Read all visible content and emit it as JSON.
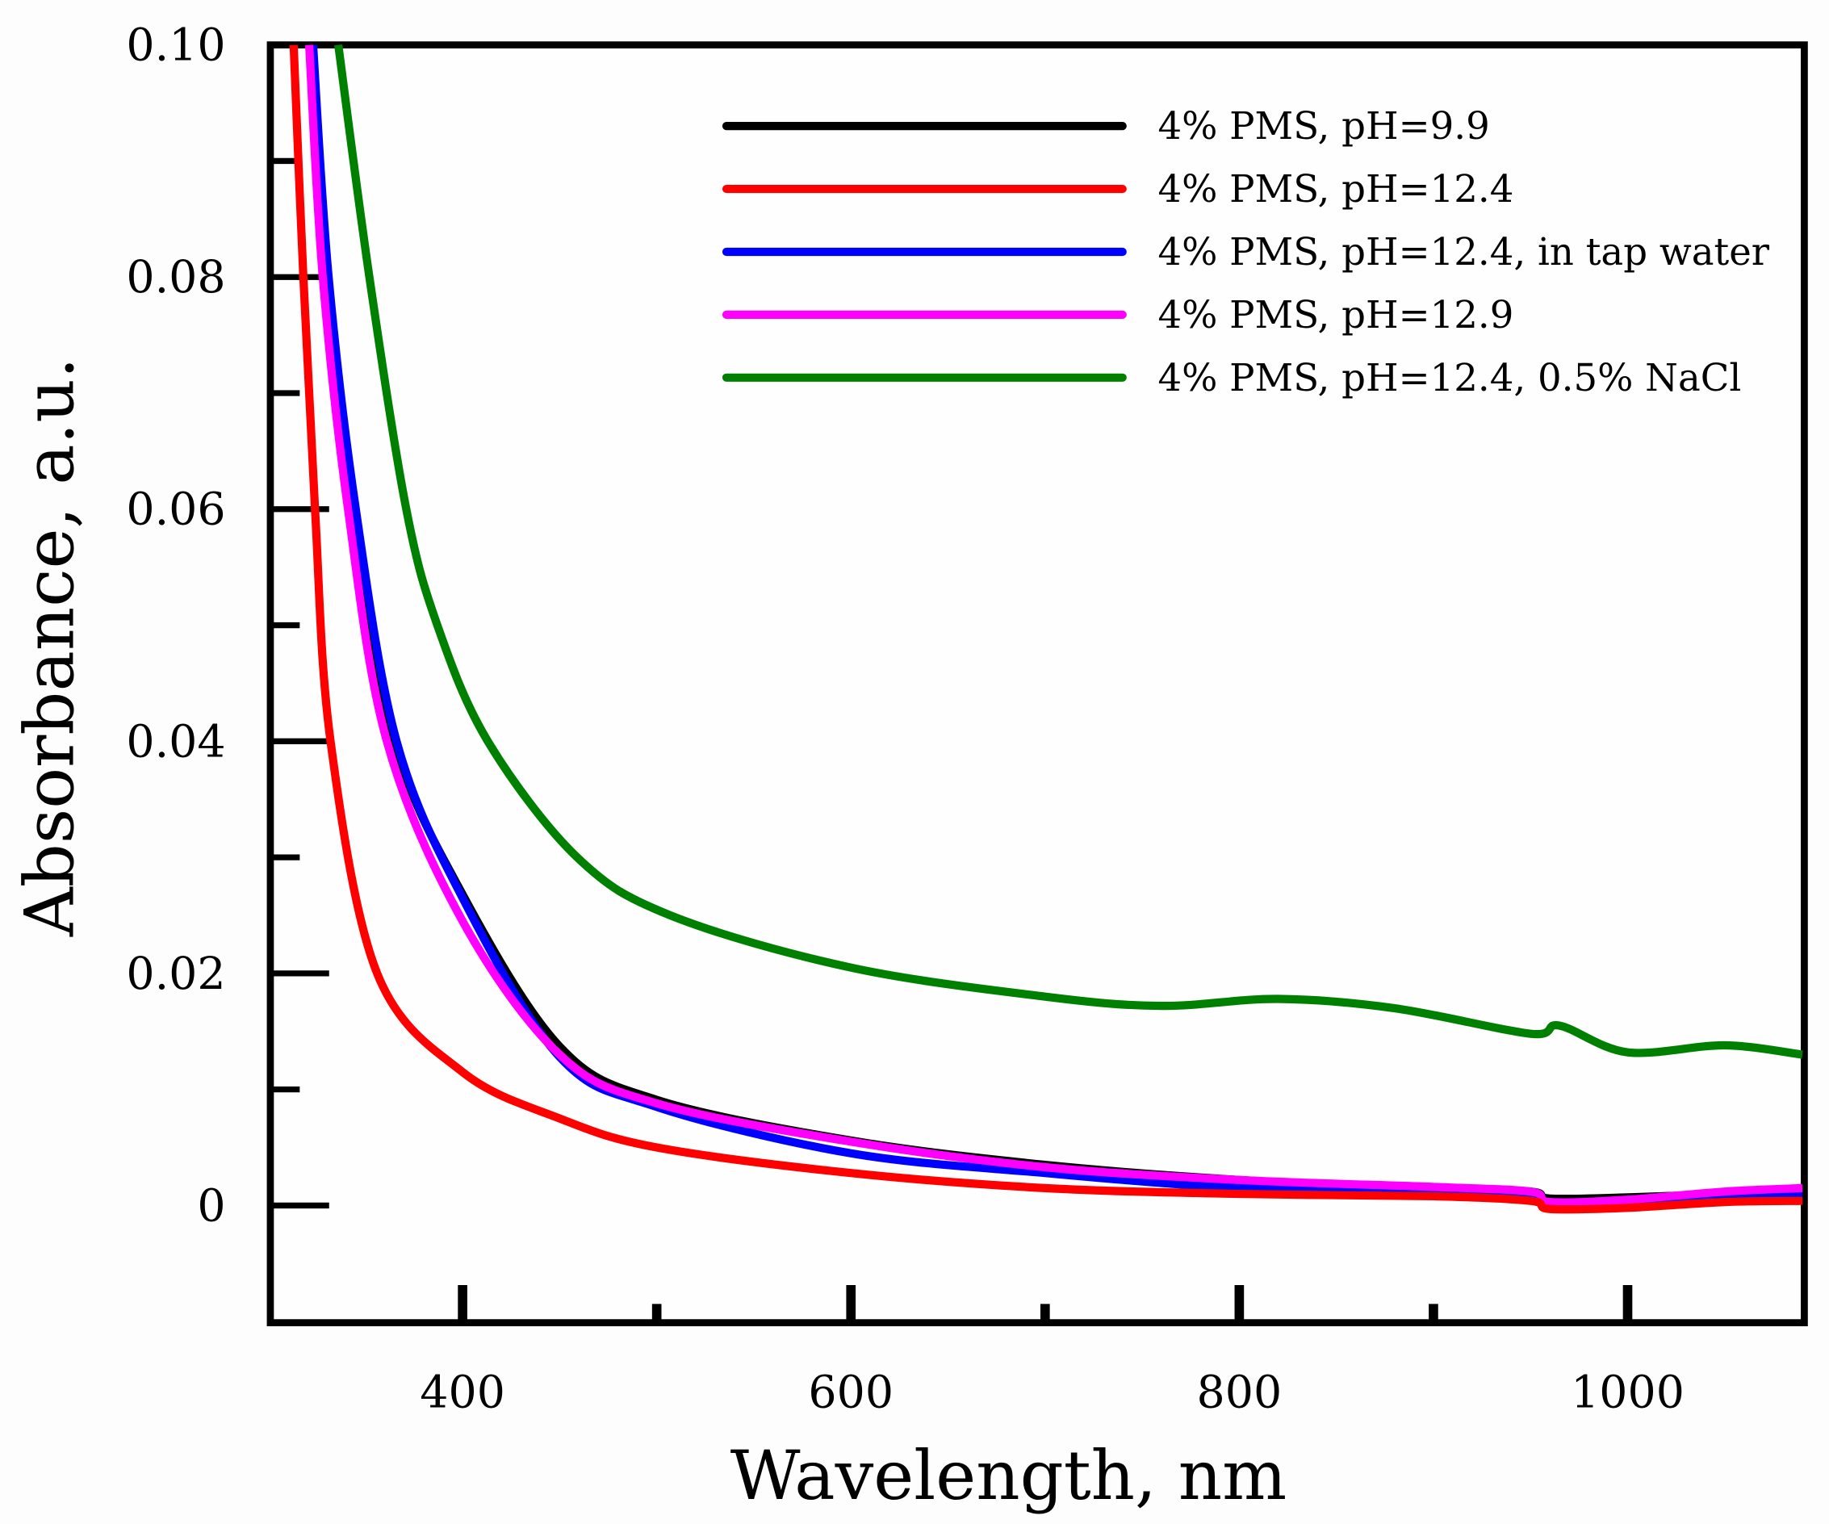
{
  "chart_data": {
    "type": "line",
    "title": "",
    "xlabel": "Wavelength, nm",
    "ylabel": "Absorbance, a.u.",
    "xlim": [
      301,
      1091
    ],
    "ylim": [
      -0.0101,
      0.1
    ],
    "xticks": [
      400,
      600,
      800,
      1000
    ],
    "xtick_labels": [
      "400",
      "600",
      "800",
      "1000"
    ],
    "xminor": [
      500,
      700,
      900
    ],
    "yticks": [
      0.1,
      0.08,
      0.06,
      0.04,
      0.02,
      0
    ],
    "ytick_labels": [
      "0.10",
      "0.08",
      "0.06",
      "0.04",
      "0.02",
      "0"
    ],
    "yminor": [
      0.09,
      0.07,
      0.05,
      0.03,
      0.01
    ],
    "grid": false,
    "legend_position": "top-right",
    "series": [
      {
        "name": "4% PMS, pH=9.9",
        "color": "#000000",
        "x": [
          322,
          330,
          344,
          365,
          400,
          450,
          500,
          600,
          700,
          800,
          900,
          950,
          960,
          1000,
          1050,
          1090
        ],
        "y": [
          0.1,
          0.08,
          0.06,
          0.04,
          0.0268,
          0.0137,
          0.0091,
          0.0056,
          0.0035,
          0.0022,
          0.0015,
          0.0012,
          0.0006,
          0.0007,
          0.001,
          0.0012
        ]
      },
      {
        "name": "4% PMS, pH=12.4",
        "color": "#ff0000",
        "x": [
          313,
          318,
          324,
          332,
          356,
          400,
          450,
          500,
          600,
          700,
          800,
          900,
          950,
          960,
          1000,
          1050,
          1090
        ],
        "y": [
          0.1,
          0.08,
          0.06,
          0.04,
          0.02,
          0.0115,
          0.0075,
          0.005,
          0.0028,
          0.0015,
          0.001,
          0.0008,
          0.0004,
          -0.0003,
          -0.0002,
          0.0003,
          0.0004
        ]
      },
      {
        "name": "4% PMS, pH=12.4, in tap water",
        "color": "#0000ff",
        "x": [
          323,
          331,
          345,
          366,
          400,
          450,
          500,
          600,
          700,
          800,
          900,
          950,
          960,
          1000,
          1050,
          1090
        ],
        "y": [
          0.1,
          0.08,
          0.06,
          0.04,
          0.0265,
          0.0128,
          0.0085,
          0.0045,
          0.0028,
          0.0015,
          0.0011,
          0.0008,
          -0.0002,
          0.0002,
          0.0008,
          0.001
        ]
      },
      {
        "name": "4% PMS, pH=12.9",
        "color": "#ff00ff",
        "x": [
          321,
          328,
          341,
          361,
          400,
          450,
          500,
          600,
          700,
          800,
          900,
          950,
          960,
          1000,
          1050,
          1090
        ],
        "y": [
          0.1,
          0.08,
          0.06,
          0.04,
          0.0245,
          0.013,
          0.0088,
          0.0055,
          0.0033,
          0.0022,
          0.0016,
          0.0012,
          0.0003,
          0.0005,
          0.0012,
          0.0015
        ]
      },
      {
        "name": "4% PMS, pH=12.4, 0.5% NaCl",
        "color": "#008000",
        "x": [
          336,
          352,
          371,
          387,
          413,
          459,
          507,
          600,
          700,
          760,
          820,
          880,
          950,
          965,
          1000,
          1050,
          1090
        ],
        "y": [
          0.1,
          0.08,
          0.06,
          0.05,
          0.04,
          0.03,
          0.025,
          0.0205,
          0.018,
          0.0172,
          0.0178,
          0.017,
          0.0148,
          0.0155,
          0.0132,
          0.0138,
          0.013
        ]
      }
    ]
  }
}
